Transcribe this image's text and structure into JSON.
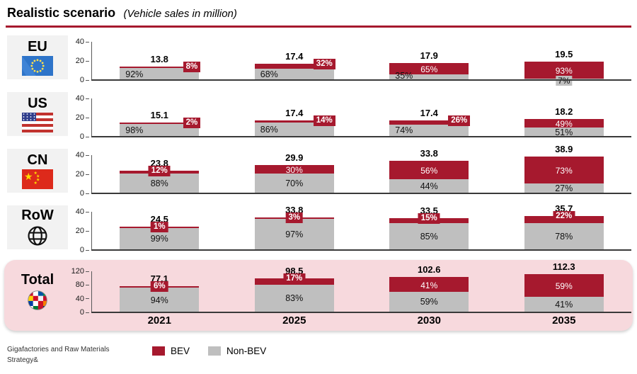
{
  "title": "Realistic scenario",
  "subtitle": "(Vehicle sales in million)",
  "accent_color": "#A6192E",
  "legend": {
    "items": [
      {
        "label": "BEV",
        "color": "#A6192E"
      },
      {
        "label": "Non-BEV",
        "color": "#BFBFBF"
      }
    ]
  },
  "footer": {
    "line1": "Gigafactories and Raw Materials",
    "line2": "Strategy&"
  },
  "chart_data": {
    "type": "bar",
    "stacked": true,
    "unit": "vehicle sales in million",
    "categories": [
      "2021",
      "2025",
      "2030",
      "2035"
    ],
    "series_colors": {
      "BEV": "#A6192E",
      "Non-BEV": "#BFBFBF"
    },
    "legend_entries": [
      "BEV",
      "Non-BEV"
    ],
    "rows": [
      {
        "region": "EU",
        "icon": "eu-flag",
        "highlight": false,
        "ylim": [
          0,
          40
        ],
        "yticks": [
          "40",
          "20",
          "0"
        ],
        "totals": [
          "13.8",
          "17.4",
          "17.9",
          "19.5"
        ],
        "values": [
          13.8,
          17.4,
          17.9,
          19.5
        ],
        "bev_pct": [
          8,
          32,
          65,
          93
        ],
        "nonbev_pct": [
          92,
          68,
          35,
          7
        ],
        "bev_label_mode": [
          "box-right",
          "box-right",
          "inside",
          "inside"
        ],
        "nonbev_label_pos": [
          "left",
          "left",
          "left",
          "below"
        ]
      },
      {
        "region": "US",
        "icon": "us-flag",
        "highlight": false,
        "ylim": [
          0,
          40
        ],
        "yticks": [
          "40",
          "20",
          "0"
        ],
        "totals": [
          "15.1",
          "17.4",
          "17.4",
          "18.2"
        ],
        "values": [
          15.1,
          17.4,
          17.4,
          18.2
        ],
        "bev_pct": [
          2,
          14,
          26,
          49
        ],
        "nonbev_pct": [
          98,
          86,
          74,
          51
        ],
        "bev_label_mode": [
          "box-right",
          "box-right",
          "box-right",
          "inside"
        ],
        "nonbev_label_pos": [
          "left",
          "left",
          "left",
          "center"
        ]
      },
      {
        "region": "CN",
        "icon": "cn-flag",
        "highlight": false,
        "ylim": [
          0,
          40
        ],
        "yticks": [
          "40",
          "20",
          "0"
        ],
        "totals": [
          "23.8",
          "29.9",
          "33.8",
          "38.9"
        ],
        "values": [
          23.8,
          29.9,
          33.8,
          38.9
        ],
        "bev_pct": [
          12,
          30,
          56,
          73
        ],
        "nonbev_pct": [
          88,
          70,
          44,
          27
        ],
        "bev_label_mode": [
          "box-center",
          "inside",
          "inside",
          "inside"
        ],
        "nonbev_label_pos": [
          "center",
          "center",
          "center",
          "center"
        ]
      },
      {
        "region": "RoW",
        "icon": "globe",
        "highlight": false,
        "ylim": [
          0,
          40
        ],
        "yticks": [
          "40",
          "20",
          "0"
        ],
        "totals": [
          "24.5",
          "33.8",
          "33.5",
          "35.7"
        ],
        "values": [
          24.5,
          33.8,
          33.5,
          35.7
        ],
        "bev_pct": [
          1,
          3,
          15,
          22
        ],
        "nonbev_pct": [
          99,
          97,
          85,
          78
        ],
        "bev_label_mode": [
          "box-center",
          "box-center",
          "box-center",
          "box-center"
        ],
        "nonbev_label_pos": [
          "center",
          "center",
          "center",
          "center"
        ]
      },
      {
        "region": "Total",
        "icon": "world-flags",
        "highlight": true,
        "ylim": [
          0,
          120
        ],
        "yticks": [
          "120",
          "80",
          "40",
          "0"
        ],
        "totals": [
          "77.1",
          "98.5",
          "102.6",
          "112.3"
        ],
        "values": [
          77.1,
          98.5,
          102.6,
          112.3
        ],
        "bev_pct": [
          6,
          17,
          41,
          59
        ],
        "nonbev_pct": [
          94,
          83,
          59,
          41
        ],
        "bev_label_mode": [
          "box-center",
          "box-center",
          "inside",
          "inside"
        ],
        "nonbev_label_pos": [
          "center",
          "center",
          "center",
          "center"
        ]
      }
    ]
  }
}
